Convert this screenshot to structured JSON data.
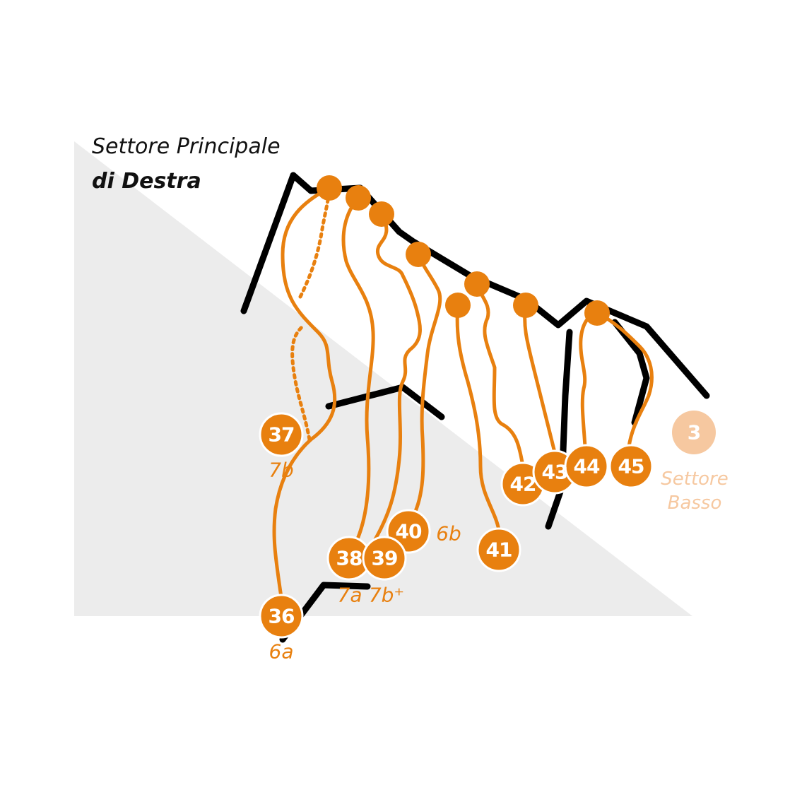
{
  "header": {
    "title_line1": "Settore Principale",
    "title_line2": "di Destra"
  },
  "routes": [
    {
      "number": "36",
      "grade": "6a"
    },
    {
      "number": "37",
      "grade": "7b"
    },
    {
      "number": "38",
      "grade": "7a"
    },
    {
      "number": "39",
      "grade": "7b⁺"
    },
    {
      "number": "40",
      "grade": "6b"
    },
    {
      "number": "41"
    },
    {
      "number": "42"
    },
    {
      "number": "43"
    },
    {
      "number": "44"
    },
    {
      "number": "45"
    }
  ],
  "other_sector": {
    "number": "3",
    "label_line1": "Settore",
    "label_line2": "Basso"
  }
}
